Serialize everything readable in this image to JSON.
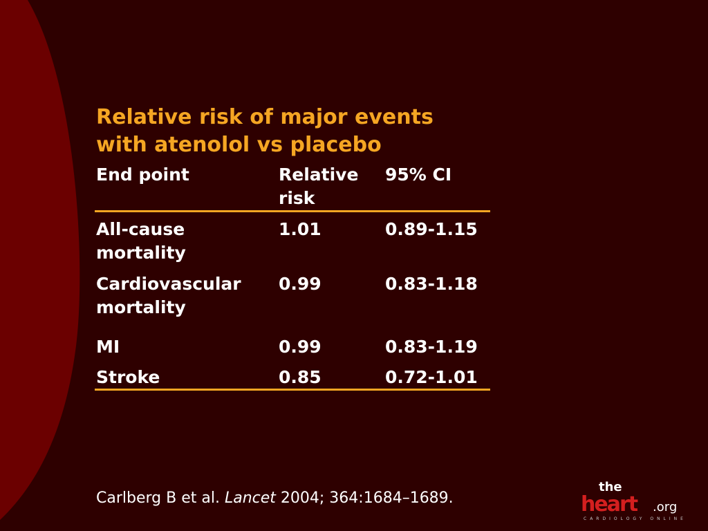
{
  "title": {
    "line1": "Relative risk of major events",
    "line2": "with atenolol vs placebo"
  },
  "table": {
    "headers": {
      "endpoint": "End point",
      "rr_line1": "Relative",
      "rr_line2": "risk",
      "ci": "95% CI"
    },
    "rows": [
      {
        "endpoint_line1": "All-cause",
        "endpoint_line2": "mortality",
        "rr": "1.01",
        "ci": "0.89-1.15"
      },
      {
        "endpoint_line1": "Cardiovascular",
        "endpoint_line2": "mortality",
        "rr": "0.99",
        "ci": "0.83-1.18"
      },
      {
        "endpoint_line1": "MI",
        "rr": "0.99",
        "ci": "0.83-1.19"
      },
      {
        "endpoint_line1": "Stroke",
        "rr": "0.85",
        "ci": "0.72-1.01"
      }
    ]
  },
  "citation": {
    "authors": "Carlberg B et al.",
    "journal": "Lancet",
    "details": "2004; 364:1684–1689."
  },
  "logo": {
    "the": "the",
    "heart": "heart",
    "org": ".org",
    "tagline": "CARDIOLOGY ONLINE"
  },
  "colors": {
    "background": "#2e0000",
    "accent": "#f5a623",
    "red_shape": "#6b0000"
  }
}
